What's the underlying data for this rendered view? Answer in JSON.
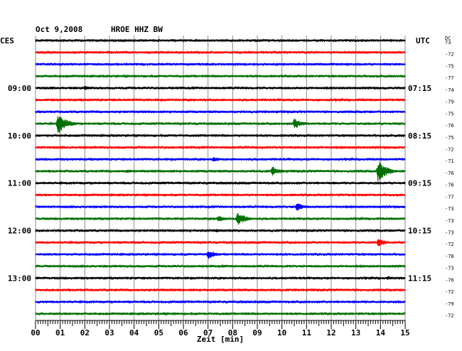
{
  "header": {
    "date": "Oct 9,2008",
    "station": "HROE HHZ BW",
    "left_zone": "CES",
    "right_zone": "UTC",
    "offset_header": "DC"
  },
  "chart_data": {
    "type": "line",
    "title": "Oct 9,2008   HROE HHZ BW",
    "xlabel": "Zeit [min]",
    "x_ticks": [
      "00",
      "01",
      "02",
      "03",
      "04",
      "05",
      "06",
      "07",
      "08",
      "09",
      "10",
      "11",
      "12",
      "13",
      "14",
      "15"
    ],
    "xlim": [
      0,
      15
    ],
    "grid": true,
    "trace_colors": [
      "#000000",
      "#ff0000",
      "#0000ff",
      "#007000"
    ],
    "left_time_labels": [
      {
        "row": 4,
        "label": "09:00"
      },
      {
        "row": 8,
        "label": "10:00"
      },
      {
        "row": 12,
        "label": "11:00"
      },
      {
        "row": 16,
        "label": "12:00"
      },
      {
        "row": 20,
        "label": "13:00"
      }
    ],
    "right_time_labels": [
      {
        "row": 4,
        "label": "07:15"
      },
      {
        "row": 8,
        "label": "08:15"
      },
      {
        "row": 12,
        "label": "09:15"
      },
      {
        "row": 16,
        "label": "10:15"
      },
      {
        "row": 20,
        "label": "11:15"
      }
    ],
    "offsets": [
      "73",
      "-72",
      "-75",
      "-77",
      "-74",
      "-79",
      "-75",
      "-76",
      "-75",
      "-72",
      "-71",
      "-76",
      "-76",
      "-77",
      "-73",
      "-73",
      "-73",
      "-72",
      "-78",
      "-73",
      "-76",
      "-72",
      "-79",
      "-72"
    ],
    "events": [
      {
        "row": 4,
        "minute": 2.0,
        "amp": 3.5
      },
      {
        "row": 7,
        "minute": 0.9,
        "amp": 16
      },
      {
        "row": 7,
        "minute": 10.5,
        "amp": 8
      },
      {
        "row": 10,
        "minute": 7.2,
        "amp": 4
      },
      {
        "row": 11,
        "minute": 3.7,
        "amp": 3
      },
      {
        "row": 11,
        "minute": 9.6,
        "amp": 7
      },
      {
        "row": 11,
        "minute": 13.9,
        "amp": 16
      },
      {
        "row": 14,
        "minute": 10.6,
        "amp": 6
      },
      {
        "row": 15,
        "minute": 8.2,
        "amp": 10
      },
      {
        "row": 15,
        "minute": 7.4,
        "amp": 5
      },
      {
        "row": 16,
        "minute": 7.3,
        "amp": 3
      },
      {
        "row": 17,
        "minute": 13.9,
        "amp": 6
      },
      {
        "row": 18,
        "minute": 7.0,
        "amp": 7
      },
      {
        "row": 20,
        "minute": 14.3,
        "amp": 3
      },
      {
        "row": 23,
        "minute": 8.6,
        "amp": 2
      }
    ]
  }
}
